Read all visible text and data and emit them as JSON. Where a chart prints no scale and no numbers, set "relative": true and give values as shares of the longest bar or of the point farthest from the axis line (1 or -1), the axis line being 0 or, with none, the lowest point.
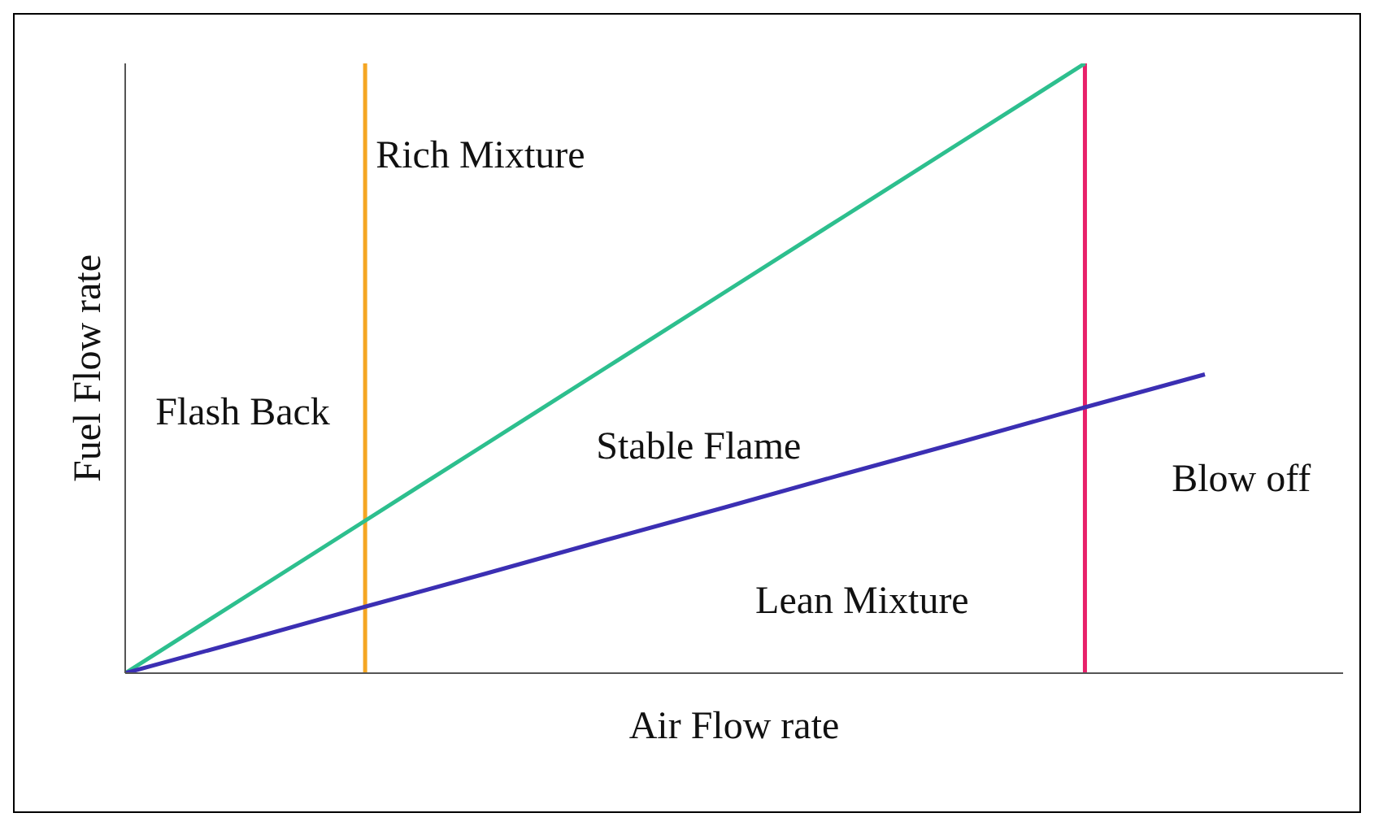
{
  "chart_data": {
    "type": "line",
    "relative": true,
    "xlabel": "Air Flow rate",
    "ylabel": "Fuel Flow rate",
    "marker": "none",
    "line_style": "solid",
    "categories": [
      null,
      null,
      null,
      null,
      null,
      null,
      null,
      null,
      null,
      null
    ],
    "series": [
      {
        "color": "#2dbf8e",
        "values": [
          0,
          0.125,
          0.25,
          0.375,
          0.5,
          0.625,
          0.75,
          0.875,
          1,
          null
        ]
      },
      {
        "color": "#3b2fb3",
        "values": [
          0,
          0.054,
          0.109,
          0.163,
          0.218,
          0.272,
          0.327,
          0.381,
          0.436,
          0.49
        ]
      }
    ],
    "annotations": [
      "Rich Mixture",
      "Flash Back",
      "Stable Flame",
      "Blow off",
      "Lean Mixture"
    ]
  }
}
